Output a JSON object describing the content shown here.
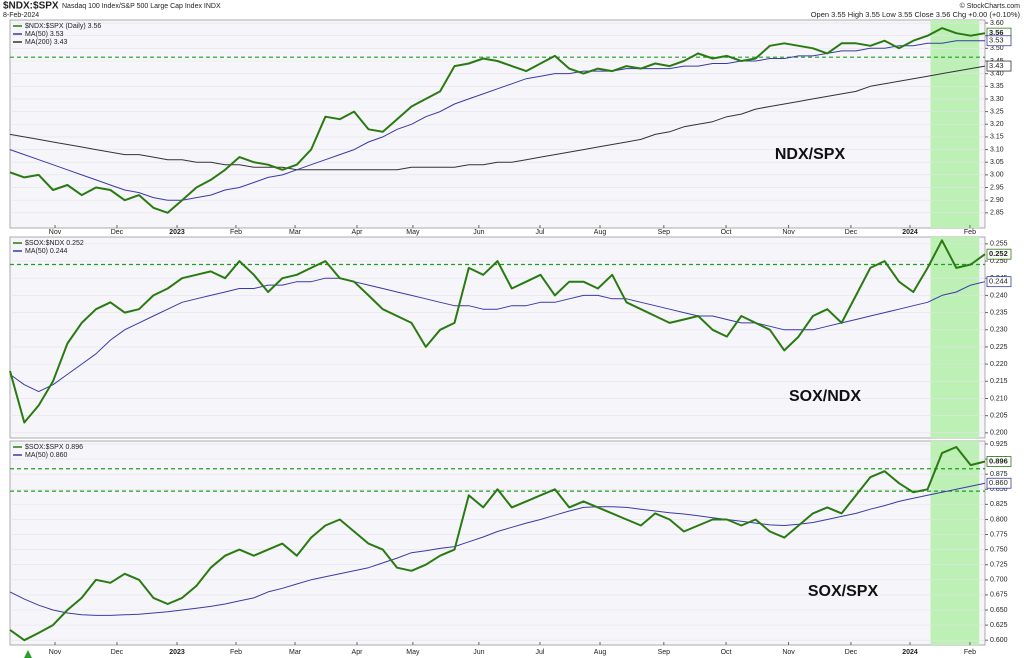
{
  "header": {
    "symbol": "$NDX:$SPX",
    "description": "Nasdaq 100 Index/S&P 500 Large Cap Index INDX",
    "date": "8-Feb-2024",
    "quote": "Open 3.55  High 3.55  Low 3.55  Close 3.56  Chg +0.00 (+0.10%)",
    "source": "© StockCharts.com"
  },
  "chart_data": [
    {
      "type": "line",
      "title": "NDX/SPX",
      "xlim": [
        0,
        68
      ],
      "x": [
        0,
        1,
        2,
        3,
        4,
        5,
        6,
        7,
        8,
        9,
        10,
        11,
        12,
        13,
        14,
        15,
        16,
        17,
        18,
        19,
        20,
        21,
        22,
        23,
        24,
        25,
        26,
        27,
        28,
        29,
        30,
        31,
        32,
        33,
        34,
        35,
        36,
        37,
        38,
        39,
        40,
        41,
        42,
        43,
        44,
        45,
        46,
        47,
        48,
        49,
        50,
        51,
        52,
        53,
        54,
        55,
        56,
        57,
        58,
        59,
        60,
        61,
        62,
        63,
        64,
        65,
        66,
        67,
        68
      ],
      "xticks": [
        {
          "value": 3.14,
          "label": "Nov"
        },
        {
          "value": 7.46,
          "label": "Dec"
        },
        {
          "value": 11.65,
          "label": "2023"
        },
        {
          "value": 15.76,
          "label": "Feb"
        },
        {
          "value": 19.88,
          "label": "Mar"
        },
        {
          "value": 24.2,
          "label": "Apr"
        },
        {
          "value": 28.1,
          "label": "May"
        },
        {
          "value": 32.7,
          "label": "Jun"
        },
        {
          "value": 36.96,
          "label": "Jul"
        },
        {
          "value": 41.15,
          "label": "Aug"
        },
        {
          "value": 45.6,
          "label": "Sep"
        },
        {
          "value": 49.94,
          "label": "Oct"
        },
        {
          "value": 54.3,
          "label": "Nov"
        },
        {
          "value": 58.65,
          "label": "Dec"
        },
        {
          "value": 62.77,
          "label": "2024"
        },
        {
          "value": 66.95,
          "label": "Feb"
        }
      ],
      "ylim": [
        2.79,
        3.612
      ],
      "yticks": [
        2.85,
        {
          "value": 2.9,
          "label": "2.90"
        },
        2.95,
        {
          "value": 3.0,
          "label": "3.00"
        },
        3.05,
        {
          "value": 3.1,
          "label": "3.10"
        },
        3.15,
        {
          "value": 3.2,
          "label": "3.20"
        },
        3.25,
        {
          "value": 3.3,
          "label": "3.30"
        },
        3.35,
        {
          "value": 3.4,
          "label": "3.40"
        },
        3.45,
        {
          "value": 3.5,
          "label": "3.50"
        },
        3.55,
        {
          "value": 3.6,
          "label": "3.60"
        }
      ],
      "grid": true,
      "hlines": [
        3.465
      ],
      "hline_color": "#1f9e1f",
      "shade": {
        "x": [
          64.2,
          67.6
        ],
        "color": "#bdf0b4"
      },
      "series": [
        {
          "name": "$NDX:$SPX (Daily) 3.56",
          "color": "#2a7a12",
          "width": 2,
          "last_label": "3.56",
          "values": [
            3.01,
            2.99,
            3.0,
            2.94,
            2.96,
            2.92,
            2.95,
            2.94,
            2.9,
            2.92,
            2.87,
            2.85,
            2.9,
            2.95,
            2.98,
            3.02,
            3.07,
            3.05,
            3.04,
            3.02,
            3.04,
            3.1,
            3.23,
            3.22,
            3.25,
            3.18,
            3.17,
            3.22,
            3.27,
            3.3,
            3.33,
            3.43,
            3.44,
            3.46,
            3.45,
            3.43,
            3.41,
            3.44,
            3.47,
            3.42,
            3.4,
            3.42,
            3.41,
            3.43,
            3.42,
            3.44,
            3.43,
            3.45,
            3.48,
            3.46,
            3.47,
            3.45,
            3.46,
            3.51,
            3.52,
            3.51,
            3.5,
            3.48,
            3.52,
            3.52,
            3.51,
            3.53,
            3.5,
            3.53,
            3.55,
            3.58,
            3.56,
            3.55,
            3.56
          ]
        },
        {
          "name": "MA(50) 3.53",
          "color": "#3a3aa6",
          "width": 1,
          "last_label": "3.53",
          "values": [
            3.1,
            3.08,
            3.06,
            3.04,
            3.02,
            3.0,
            2.98,
            2.96,
            2.94,
            2.93,
            2.91,
            2.9,
            2.9,
            2.91,
            2.92,
            2.94,
            2.95,
            2.97,
            2.99,
            3.0,
            3.02,
            3.04,
            3.06,
            3.08,
            3.1,
            3.13,
            3.15,
            3.18,
            3.2,
            3.23,
            3.25,
            3.28,
            3.3,
            3.32,
            3.34,
            3.36,
            3.38,
            3.39,
            3.4,
            3.4,
            3.41,
            3.41,
            3.41,
            3.42,
            3.42,
            3.42,
            3.42,
            3.43,
            3.43,
            3.44,
            3.44,
            3.45,
            3.45,
            3.46,
            3.46,
            3.47,
            3.47,
            3.48,
            3.49,
            3.49,
            3.5,
            3.5,
            3.51,
            3.51,
            3.52,
            3.52,
            3.53,
            3.53,
            3.53
          ]
        },
        {
          "name": "MA(200) 3.43",
          "color": "#333333",
          "width": 1,
          "last_label": "3.43",
          "values": [
            3.16,
            3.15,
            3.14,
            3.13,
            3.12,
            3.11,
            3.1,
            3.09,
            3.08,
            3.08,
            3.07,
            3.06,
            3.06,
            3.05,
            3.05,
            3.04,
            3.04,
            3.03,
            3.03,
            3.03,
            3.02,
            3.02,
            3.02,
            3.02,
            3.02,
            3.02,
            3.02,
            3.02,
            3.03,
            3.03,
            3.03,
            3.03,
            3.04,
            3.04,
            3.05,
            3.05,
            3.06,
            3.07,
            3.08,
            3.09,
            3.1,
            3.11,
            3.12,
            3.13,
            3.14,
            3.16,
            3.17,
            3.19,
            3.2,
            3.21,
            3.23,
            3.24,
            3.26,
            3.27,
            3.28,
            3.29,
            3.3,
            3.31,
            3.32,
            3.33,
            3.35,
            3.36,
            3.37,
            3.38,
            3.39,
            3.4,
            3.41,
            3.42,
            3.43
          ]
        }
      ]
    },
    {
      "type": "line",
      "title": "SOX/NDX",
      "xlim": [
        0,
        68
      ],
      "x": [
        0,
        1,
        2,
        3,
        4,
        5,
        6,
        7,
        8,
        9,
        10,
        11,
        12,
        13,
        14,
        15,
        16,
        17,
        18,
        19,
        20,
        21,
        22,
        23,
        24,
        25,
        26,
        27,
        28,
        29,
        30,
        31,
        32,
        33,
        34,
        35,
        36,
        37,
        38,
        39,
        40,
        41,
        42,
        43,
        44,
        45,
        46,
        47,
        48,
        49,
        50,
        51,
        52,
        53,
        54,
        55,
        56,
        57,
        58,
        59,
        60,
        61,
        62,
        63,
        64,
        65,
        66,
        67,
        68
      ],
      "ylim": [
        0.1985,
        0.257
      ],
      "yticks": [
        {
          "value": 0.2,
          "label": "0.200"
        },
        0.205,
        {
          "value": 0.21,
          "label": "0.210"
        },
        0.215,
        {
          "value": 0.22,
          "label": "0.220"
        },
        0.225,
        {
          "value": 0.23,
          "label": "0.230"
        },
        0.235,
        {
          "value": 0.24,
          "label": "0.240"
        },
        0.245,
        {
          "value": 0.25,
          "label": "0.250"
        },
        0.255
      ],
      "grid": true,
      "hlines": [
        0.249
      ],
      "hline_color": "#1f9e1f",
      "shade": {
        "x": [
          64.2,
          67.6
        ],
        "color": "#bdf0b4"
      },
      "series": [
        {
          "name": "$SOX:$NDX 0.252",
          "color": "#2a7a12",
          "width": 2,
          "last_label": "0.252",
          "values": [
            0.218,
            0.203,
            0.208,
            0.215,
            0.226,
            0.232,
            0.236,
            0.238,
            0.235,
            0.236,
            0.24,
            0.242,
            0.245,
            0.246,
            0.247,
            0.245,
            0.25,
            0.246,
            0.241,
            0.245,
            0.246,
            0.248,
            0.25,
            0.245,
            0.244,
            0.24,
            0.236,
            0.234,
            0.232,
            0.225,
            0.23,
            0.232,
            0.248,
            0.246,
            0.25,
            0.242,
            0.244,
            0.246,
            0.24,
            0.244,
            0.244,
            0.242,
            0.246,
            0.238,
            0.236,
            0.234,
            0.232,
            0.233,
            0.234,
            0.23,
            0.228,
            0.234,
            0.232,
            0.23,
            0.224,
            0.228,
            0.234,
            0.236,
            0.232,
            0.24,
            0.248,
            0.25,
            0.244,
            0.241,
            0.248,
            0.256,
            0.248,
            0.249,
            0.252
          ]
        },
        {
          "name": "MA(50) 0.244",
          "color": "#3a3aa6",
          "width": 1,
          "last_label": "0.244",
          "values": [
            0.217,
            0.214,
            0.212,
            0.214,
            0.217,
            0.22,
            0.223,
            0.227,
            0.23,
            0.232,
            0.234,
            0.236,
            0.238,
            0.239,
            0.24,
            0.241,
            0.242,
            0.242,
            0.243,
            0.243,
            0.244,
            0.244,
            0.245,
            0.245,
            0.244,
            0.243,
            0.242,
            0.241,
            0.24,
            0.239,
            0.238,
            0.237,
            0.237,
            0.236,
            0.236,
            0.237,
            0.237,
            0.238,
            0.238,
            0.239,
            0.24,
            0.24,
            0.239,
            0.239,
            0.238,
            0.237,
            0.236,
            0.235,
            0.234,
            0.234,
            0.233,
            0.232,
            0.232,
            0.231,
            0.23,
            0.23,
            0.23,
            0.231,
            0.232,
            0.233,
            0.234,
            0.235,
            0.236,
            0.237,
            0.238,
            0.24,
            0.241,
            0.243,
            0.244
          ]
        }
      ]
    },
    {
      "type": "line",
      "title": "SOX/SPX",
      "xlim": [
        0,
        68
      ],
      "x": [
        0,
        1,
        2,
        3,
        4,
        5,
        6,
        7,
        8,
        9,
        10,
        11,
        12,
        13,
        14,
        15,
        16,
        17,
        18,
        19,
        20,
        21,
        22,
        23,
        24,
        25,
        26,
        27,
        28,
        29,
        30,
        31,
        32,
        33,
        34,
        35,
        36,
        37,
        38,
        39,
        40,
        41,
        42,
        43,
        44,
        45,
        46,
        47,
        48,
        49,
        50,
        51,
        52,
        53,
        54,
        55,
        56,
        57,
        58,
        59,
        60,
        61,
        62,
        63,
        64,
        65,
        66,
        67,
        68
      ],
      "xticks": [
        {
          "value": 3.14,
          "label": "Nov"
        },
        {
          "value": 7.46,
          "label": "Dec"
        },
        {
          "value": 11.65,
          "label": "2023"
        },
        {
          "value": 15.76,
          "label": "Feb"
        },
        {
          "value": 19.88,
          "label": "Mar"
        },
        {
          "value": 24.2,
          "label": "Apr"
        },
        {
          "value": 28.1,
          "label": "May"
        },
        {
          "value": 32.7,
          "label": "Jun"
        },
        {
          "value": 36.96,
          "label": "Jul"
        },
        {
          "value": 41.15,
          "label": "Aug"
        },
        {
          "value": 45.6,
          "label": "Sep"
        },
        {
          "value": 49.94,
          "label": "Oct"
        },
        {
          "value": 54.3,
          "label": "Nov"
        },
        {
          "value": 58.65,
          "label": "Dec"
        },
        {
          "value": 62.77,
          "label": "2024"
        },
        {
          "value": 66.95,
          "label": "Feb"
        }
      ],
      "ylim": [
        0.592,
        0.93
      ],
      "yticks": [
        {
          "value": 0.6,
          "label": "0.600"
        },
        0.625,
        {
          "value": 0.65,
          "label": "0.650"
        },
        0.675,
        {
          "value": 0.7,
          "label": "0.700"
        },
        0.725,
        {
          "value": 0.75,
          "label": "0.750"
        },
        0.775,
        {
          "value": 0.8,
          "label": "0.800"
        },
        0.825,
        {
          "value": 0.85,
          "label": "0.850"
        },
        0.875,
        {
          "value": 0.9,
          "label": "0.900"
        },
        0.925
      ],
      "grid": true,
      "hlines": [
        0.884,
        0.847
      ],
      "hline_color": "#1f9e1f",
      "shade": {
        "x": [
          64.2,
          67.6
        ],
        "color": "#bdf0b4"
      },
      "series": [
        {
          "name": "$SOX:$SPX 0.896",
          "color": "#2a7a12",
          "width": 2,
          "last_label": "0.896",
          "values": [
            0.617,
            0.6,
            0.612,
            0.625,
            0.65,
            0.67,
            0.7,
            0.695,
            0.71,
            0.7,
            0.67,
            0.66,
            0.67,
            0.69,
            0.72,
            0.74,
            0.75,
            0.74,
            0.75,
            0.76,
            0.74,
            0.77,
            0.79,
            0.8,
            0.78,
            0.76,
            0.75,
            0.72,
            0.715,
            0.725,
            0.74,
            0.75,
            0.84,
            0.82,
            0.85,
            0.82,
            0.83,
            0.84,
            0.85,
            0.82,
            0.83,
            0.82,
            0.81,
            0.8,
            0.79,
            0.81,
            0.8,
            0.78,
            0.79,
            0.8,
            0.8,
            0.79,
            0.8,
            0.78,
            0.77,
            0.79,
            0.81,
            0.82,
            0.81,
            0.84,
            0.87,
            0.88,
            0.86,
            0.845,
            0.85,
            0.91,
            0.92,
            0.89,
            0.896
          ]
        },
        {
          "name": "MA(50) 0.860",
          "color": "#3a3aa6",
          "width": 1,
          "last_label": "0.860",
          "values": [
            0.68,
            0.668,
            0.658,
            0.65,
            0.645,
            0.642,
            0.641,
            0.641,
            0.642,
            0.643,
            0.645,
            0.647,
            0.65,
            0.653,
            0.656,
            0.66,
            0.665,
            0.67,
            0.68,
            0.686,
            0.693,
            0.7,
            0.705,
            0.71,
            0.715,
            0.72,
            0.728,
            0.736,
            0.745,
            0.748,
            0.752,
            0.755,
            0.763,
            0.771,
            0.78,
            0.787,
            0.794,
            0.8,
            0.807,
            0.814,
            0.82,
            0.821,
            0.821,
            0.82,
            0.817,
            0.814,
            0.811,
            0.809,
            0.806,
            0.803,
            0.8,
            0.797,
            0.794,
            0.791,
            0.79,
            0.792,
            0.795,
            0.8,
            0.805,
            0.81,
            0.817,
            0.823,
            0.83,
            0.835,
            0.84,
            0.845,
            0.85,
            0.855,
            0.86
          ]
        }
      ]
    }
  ]
}
